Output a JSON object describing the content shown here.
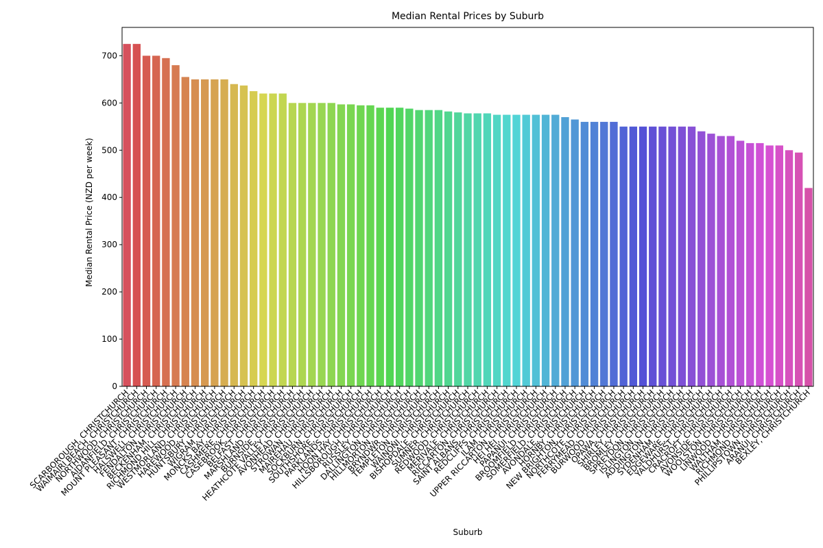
{
  "chart_data": {
    "type": "bar",
    "title": "Median Rental Prices by Suburb",
    "x_label": "Suburb",
    "y_label": "Median Rental Price (NZD per week)",
    "palette": "husl",
    "categories": [
      "SCARBOROUGH, CHRISTCHURCH",
      "WAIMAIRI BEACH, CHRISTCHURCH",
      "NORTHWOOD, CHRISTCHURCH",
      "AIDANFIELD, CHRISTCHURCH",
      "MOUNT PLEASANT, CHRISTCHURCH",
      "HALSWELL, CHRISTCHURCH",
      "FENDALTON, CHRISTCHURCH",
      "BECKENHAM, CHRISTCHURCH",
      "RICHMOND HILL, CHRISTCHURCH",
      "WESTMORLAND, CHRISTCHURCH",
      "HAREWOOD, CHRISTCHURCH",
      "HUNTSBURY, CHRISTCHURCH",
      "WIGRAM, CHRISTCHURCH",
      "MONCKS BAY, CHRISTCHURCH",
      "CASHMERE, CHRISTCHURCH",
      "CASEBROOK, CHRISTCHURCH",
      "BELFAST, CHRISTCHURCH",
      "MARSHLAND, CHRISTCHURCH",
      "BURNSIDE, CHRISTCHURCH",
      "HEATHCOTE VALLEY, CHRISTCHURCH",
      "AVONHEAD, CHRISTCHURCH",
      "STROWAN, CHRISTCHURCH",
      "MAIREHAU, CHRISTCHURCH",
      "SOCKBURN, CHRISTCHURCH",
      "SOUTHSHORE, CHRISTCHURCH",
      "PARKLANDS, CHRISTCHURCH",
      "HOON HAY, CHRISTCHURCH",
      "HILLSBOROUGH, CHRISTCHURCH",
      "RUSSLEY, CHRISTCHURCH",
      "DALLINGTON, CHRISTCHURCH",
      "HILLMORTON, CHRISTCHURCH",
      "BRYNDWR, CHRISTCHURCH",
      "TEMPLETON, CHRISTCHURCH",
      "WAINONI, CHRISTCHURCH",
      "BISHOPDALE, CHRISTCHURCH",
      "SUMNER, CHRISTCHURCH",
      "REDWOOD, CHRISTCHURCH",
      "MERIVALE, CHRISTCHURCH",
      "RICCARTON, CHRISTCHURCH",
      "SAINT ALBANS, CHRISTCHURCH",
      "REDCLIFFS, CHRISTCHURCH",
      "ILAM, CHRISTCHURCH",
      "UPPER RICCARTON, CHRISTCHURCH",
      "HEI HEI, CHRISTCHURCH",
      "PAPANUI, CHRISTCHURCH",
      "BROOMFIELD, CHRISTCHURCH",
      "SOMERFIELD, CHRISTCHURCH",
      "AVONDALE, CHRISTCHURCH",
      "HORNBY, CHRISTCHURCH",
      "NEW BRIGHTON, CHRISTCHURCH",
      "NORTHCOTE, CHRISTCHURCH",
      "FERRYMEAD, CHRISTCHURCH",
      "BURWOOD, CHRISTCHURCH",
      "OPAWA, CHRISTCHURCH",
      "SHIRLEY, CHRISTCHURCH",
      "BROMLEY, CHRISTCHURCH",
      "SPREYDON, CHRISTCHURCH",
      "ISLINGTON, CHRISTCHURCH",
      "ADDINGTON, CHRISTCHURCH",
      "SYDENHAM, CHRISTCHURCH",
      "EDGEWARE, CHRISTCHURCH",
      "YALDHURST, CHRISTCHURCH",
      "CRACROFT, CHRISTCHURCH",
      "AVONSIDE, CHRISTCHURCH",
      "WOOLSTON, CHRISTCHURCH",
      "LINWOOD, CHRISTCHURCH",
      "WALTHAM, CHRISTCHURCH",
      "RICHMOND, CHRISTCHURCH",
      "PHILLIPSTOWN, CHRISTCHURCH",
      "ARANUI, CHRISTCHURCH",
      "BEXLEY, CHRISTCHURCH"
    ],
    "values": [
      725,
      725,
      700,
      700,
      695,
      680,
      655,
      650,
      650,
      650,
      650,
      640,
      637,
      625,
      620,
      620,
      620,
      600,
      600,
      600,
      600,
      600,
      597,
      597,
      595,
      595,
      590,
      590,
      590,
      588,
      585,
      585,
      585,
      582,
      580,
      578,
      578,
      578,
      575,
      575,
      575,
      575,
      575,
      575,
      575,
      570,
      565,
      560,
      560,
      560,
      560,
      550,
      550,
      550,
      550,
      550,
      550,
      550,
      550,
      540,
      535,
      530,
      530,
      520,
      515,
      515,
      510,
      510,
      500,
      495,
      420
    ],
    "ylim": [
      0,
      760
    ],
    "yticks": [
      0,
      100,
      200,
      300,
      400,
      500,
      600,
      700
    ]
  }
}
